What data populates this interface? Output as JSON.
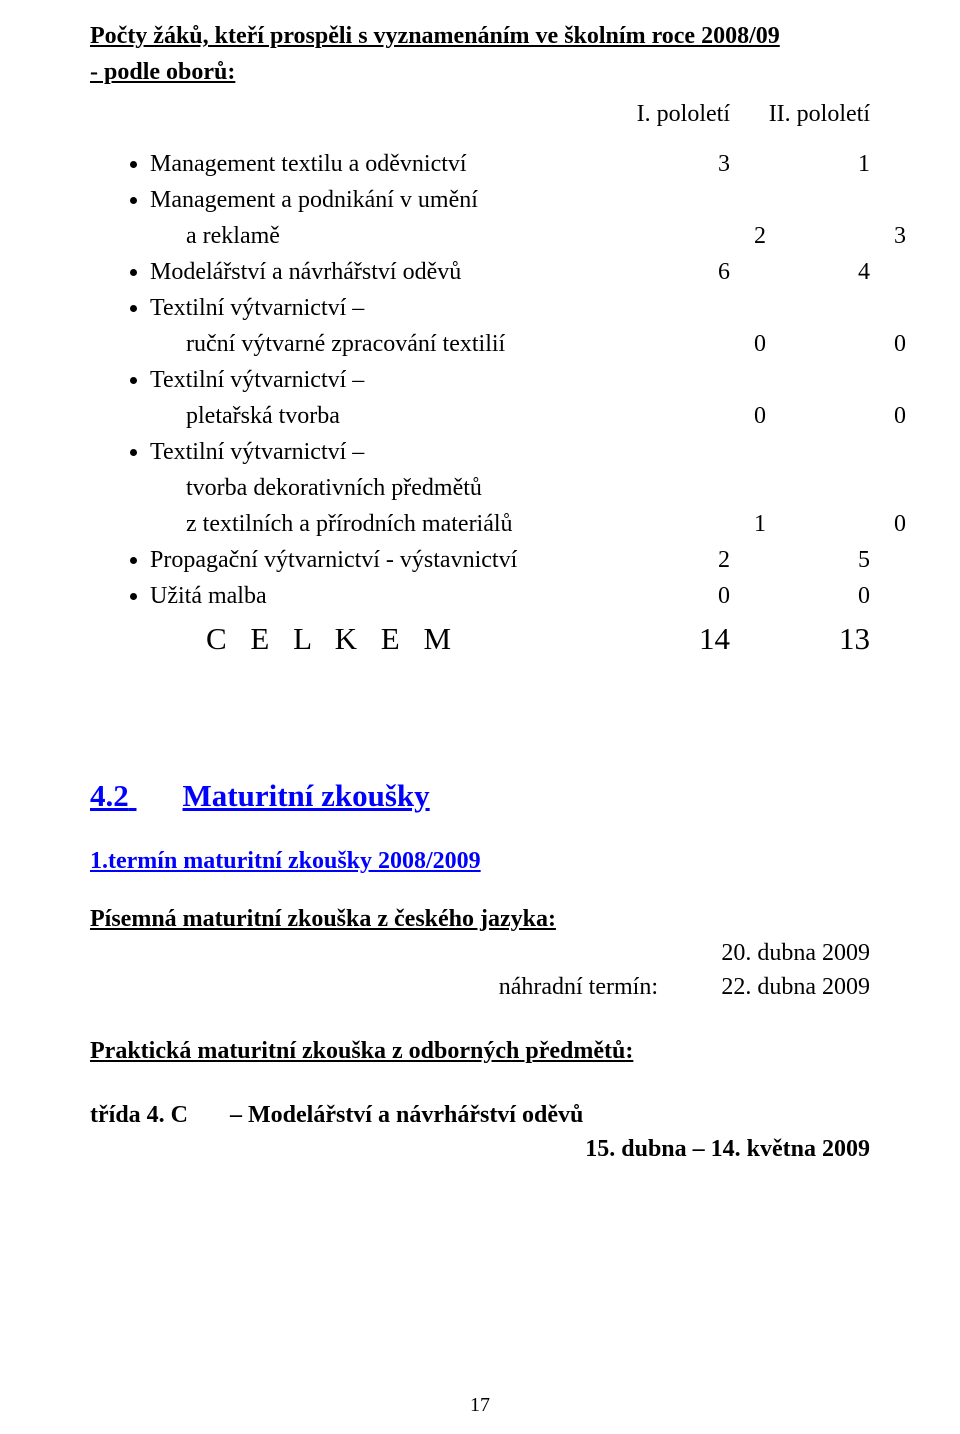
{
  "title_line1": "Počty žáků, kteří prospěli s vyznamenáním ve školním roce 2008/09",
  "title_line2": "- podle oborů:",
  "col1_header": "I. pololetí",
  "col2_header": "II. pololetí",
  "rows": [
    {
      "label": "Management textilu a oděvnictví",
      "c1": "3",
      "c2": "1"
    },
    {
      "label": "Management a podnikání v umění"
    },
    {
      "sublabel": "a reklamě",
      "c1": "2",
      "c2": "3"
    },
    {
      "label": "Modelářství a návrhářství oděvů",
      "c1": "6",
      "c2": "4"
    },
    {
      "label": "Textilní výtvarnictví –"
    },
    {
      "sublabel": "ruční výtvarné zpracování textilií",
      "c1": "0",
      "c2": "0"
    },
    {
      "label": "Textilní výtvarnictví –"
    },
    {
      "sublabel": "pletařská tvorba",
      "c1": "0",
      "c2": "0"
    },
    {
      "label": "Textilní výtvarnictví –"
    },
    {
      "sublabel": "tvorba dekorativních předmětů"
    },
    {
      "sublabel": "z textilních a přírodních materiálů",
      "c1": "1",
      "c2": "0"
    },
    {
      "label": "Propagační výtvarnictví - výstavnictví",
      "c1": "2",
      "c2": "5"
    },
    {
      "label": "Užitá malba",
      "c1": "0",
      "c2": "0"
    }
  ],
  "total_label": "C E L K E M",
  "total_c1": "14",
  "total_c2": "13",
  "section_num": "4.2",
  "section_txt": "Maturitní zkoušky",
  "subhead": "1.termín maturitní zkoušky 2008/2009",
  "written_head": "Písemná maturitní zkouška z českého jazyka:",
  "written_date1_val": "20. dubna 2009",
  "written_date2_lbl": "náhradní termín:",
  "written_date2_val": "22. dubna 2009",
  "practical_head": "Praktická maturitní zkouška z odborných předmětů:",
  "class_lbl": "třída 4. C",
  "class_desc": "– Modelářství a návrhářství oděvů",
  "class_date": "15. dubna – 14. května 2009",
  "page_number": "17"
}
